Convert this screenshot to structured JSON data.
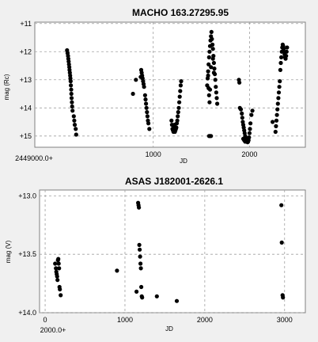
{
  "colors": {
    "background": "#f0f0f0",
    "plot_bg": "#ffffff",
    "point": "#000000",
    "grid": "#a0a0a0",
    "frame": "#808080"
  },
  "chart_data": [
    {
      "type": "scatter",
      "title": "MACHO 163.27295.95",
      "xlabel": "JD",
      "ylabel": "mag (Rc)",
      "x_offset_label": "2449000.0+",
      "xlim": [
        -230,
        2580
      ],
      "ylim": [
        15.4,
        10.95
      ],
      "y_inverted": true,
      "grid": true,
      "x_ticks": [
        1000,
        2000
      ],
      "x_tick_labels": [
        "1000",
        "2000"
      ],
      "y_ticks": [
        11,
        12,
        13,
        14,
        15
      ],
      "y_tick_labels": [
        "+11",
        "+12",
        "+13",
        "+14",
        "+15"
      ],
      "series": [
        {
          "points": [
            [
              105,
              11.95
            ],
            [
              110,
              12.05
            ],
            [
              115,
              12.15
            ],
            [
              118,
              12.25
            ],
            [
              122,
              12.35
            ],
            [
              125,
              12.45
            ],
            [
              128,
              12.55
            ],
            [
              131,
              12.65
            ],
            [
              134,
              12.75
            ],
            [
              137,
              12.85
            ],
            [
              140,
              12.95
            ],
            [
              142,
              13.05
            ],
            [
              145,
              13.2
            ],
            [
              148,
              13.35
            ],
            [
              150,
              13.5
            ],
            [
              152,
              13.65
            ],
            [
              155,
              13.8
            ],
            [
              158,
              13.95
            ],
            [
              162,
              14.1
            ],
            [
              175,
              14.3
            ],
            [
              180,
              14.45
            ],
            [
              185,
              14.6
            ],
            [
              195,
              14.75
            ],
            [
              200,
              14.95
            ],
            [
              790,
              13.5
            ],
            [
              820,
              13.0
            ],
            [
              870,
              12.9
            ],
            [
              875,
              12.65
            ],
            [
              880,
              12.75
            ],
            [
              885,
              12.85
            ],
            [
              890,
              12.95
            ],
            [
              895,
              13.05
            ],
            [
              900,
              13.15
            ],
            [
              905,
              13.25
            ],
            [
              915,
              13.55
            ],
            [
              920,
              13.7
            ],
            [
              925,
              13.85
            ],
            [
              930,
              14.0
            ],
            [
              935,
              14.15
            ],
            [
              940,
              14.3
            ],
            [
              945,
              14.45
            ],
            [
              950,
              14.55
            ],
            [
              960,
              14.75
            ],
            [
              1190,
              14.45
            ],
            [
              1195,
              14.6
            ],
            [
              1200,
              14.75
            ],
            [
              1205,
              14.8
            ],
            [
              1210,
              14.85
            ],
            [
              1215,
              14.7
            ],
            [
              1220,
              14.6
            ],
            [
              1225,
              14.85
            ],
            [
              1230,
              14.8
            ],
            [
              1235,
              14.75
            ],
            [
              1240,
              14.7
            ],
            [
              1245,
              14.55
            ],
            [
              1250,
              14.45
            ],
            [
              1255,
              14.3
            ],
            [
              1260,
              14.15
            ],
            [
              1265,
              14.0
            ],
            [
              1270,
              13.8
            ],
            [
              1275,
              13.6
            ],
            [
              1280,
              13.4
            ],
            [
              1285,
              13.2
            ],
            [
              1290,
              13.05
            ],
            [
              1560,
              13.2
            ],
            [
              1565,
              12.95
            ],
            [
              1570,
              12.7
            ],
            [
              1575,
              12.45
            ],
            [
              1580,
              12.2
            ],
            [
              1585,
              12.0
            ],
            [
              1590,
              11.8
            ],
            [
              1595,
              11.6
            ],
            [
              1600,
              11.45
            ],
            [
              1605,
              11.3
            ],
            [
              1610,
              11.55
            ],
            [
              1615,
              11.75
            ],
            [
              1620,
              11.9
            ],
            [
              1625,
              12.15
            ],
            [
              1630,
              12.4
            ],
            [
              1635,
              12.6
            ],
            [
              1640,
              12.8
            ],
            [
              1645,
              13.0
            ],
            [
              1650,
              13.25
            ],
            [
              1655,
              13.45
            ],
            [
              1660,
              13.65
            ],
            [
              1665,
              13.85
            ],
            [
              1580,
              15.0
            ],
            [
              1590,
              15.0
            ],
            [
              1600,
              15.0
            ],
            [
              1570,
              12.85
            ],
            [
              1575,
              13.3
            ],
            [
              1580,
              13.55
            ],
            [
              1585,
              13.8
            ],
            [
              1590,
              13.35
            ],
            [
              1600,
              12.55
            ],
            [
              1620,
              12.25
            ],
            [
              1630,
              12.75
            ],
            [
              1890,
              13.0
            ],
            [
              1895,
              13.1
            ],
            [
              1900,
              14.0
            ],
            [
              1910,
              14.05
            ],
            [
              1920,
              14.2
            ],
            [
              1925,
              14.35
            ],
            [
              1930,
              14.5
            ],
            [
              1935,
              14.6
            ],
            [
              1940,
              14.7
            ],
            [
              1945,
              14.8
            ],
            [
              1950,
              14.9
            ],
            [
              1955,
              15.0
            ],
            [
              1960,
              15.05
            ],
            [
              1965,
              15.1
            ],
            [
              1970,
              15.15
            ],
            [
              1975,
              15.2
            ],
            [
              1980,
              15.22
            ],
            [
              1985,
              15.2
            ],
            [
              1990,
              15.15
            ],
            [
              1995,
              15.05
            ],
            [
              2000,
              14.9
            ],
            [
              2005,
              14.75
            ],
            [
              2010,
              14.55
            ],
            [
              2020,
              14.25
            ],
            [
              2030,
              14.1
            ],
            [
              1935,
              15.1
            ],
            [
              1945,
              15.15
            ],
            [
              1955,
              15.2
            ],
            [
              1975,
              15.1
            ],
            [
              2240,
              14.5
            ],
            [
              2270,
              14.85
            ],
            [
              2275,
              14.65
            ],
            [
              2280,
              14.45
            ],
            [
              2285,
              14.25
            ],
            [
              2290,
              14.05
            ],
            [
              2295,
              13.85
            ],
            [
              2300,
              13.65
            ],
            [
              2305,
              13.45
            ],
            [
              2310,
              13.25
            ],
            [
              2315,
              13.05
            ],
            [
              2320,
              12.65
            ],
            [
              2325,
              12.4
            ],
            [
              2330,
              12.2
            ],
            [
              2335,
              12.0
            ],
            [
              2340,
              11.85
            ],
            [
              2345,
              11.75
            ],
            [
              2350,
              11.8
            ],
            [
              2355,
              11.9
            ],
            [
              2360,
              12.0
            ],
            [
              2365,
              12.1
            ],
            [
              2370,
              12.2
            ],
            [
              2375,
              12.25
            ],
            [
              2380,
              12.15
            ],
            [
              2385,
              12.0
            ],
            [
              2390,
              11.85
            ]
          ]
        }
      ]
    },
    {
      "type": "scatter",
      "title": "ASAS J182001-2626.1",
      "xlabel": "JD",
      "ylabel": "mag (V)",
      "x_offset_label": "2000.0+",
      "xlim": [
        -70,
        3260
      ],
      "ylim": [
        14.0,
        12.95
      ],
      "y_inverted": true,
      "grid": true,
      "x_ticks": [
        0,
        1000,
        2000,
        3000
      ],
      "x_tick_labels": [
        "0",
        "1000",
        "2000",
        "3000"
      ],
      "y_ticks": [
        13.0,
        13.5,
        14.0
      ],
      "y_tick_labels": [
        "+13.0",
        "+13.5",
        "+14.0"
      ],
      "series": [
        {
          "points": [
            [
              125,
              13.58
            ],
            [
              135,
              13.62
            ],
            [
              140,
              13.65
            ],
            [
              145,
              13.67
            ],
            [
              150,
              13.69
            ],
            [
              155,
              13.72
            ],
            [
              160,
              13.55
            ],
            [
              165,
              13.54
            ],
            [
              170,
              13.58
            ],
            [
              175,
              13.62
            ],
            [
              180,
              13.78
            ],
            [
              185,
              13.8
            ],
            [
              195,
              13.85
            ],
            [
              900,
              13.64
            ],
            [
              1145,
              13.82
            ],
            [
              1165,
              13.06
            ],
            [
              1170,
              13.08
            ],
            [
              1175,
              13.1
            ],
            [
              1180,
              13.42
            ],
            [
              1185,
              13.46
            ],
            [
              1190,
              13.52
            ],
            [
              1195,
              13.58
            ],
            [
              1200,
              13.62
            ],
            [
              1205,
              13.78
            ],
            [
              1210,
              13.86
            ],
            [
              1215,
              13.87
            ],
            [
              1400,
              13.86
            ],
            [
              1650,
              13.9
            ],
            [
              2960,
              13.08
            ],
            [
              2965,
              13.4
            ],
            [
              2975,
              13.85
            ],
            [
              2980,
              13.87
            ]
          ]
        }
      ]
    }
  ]
}
